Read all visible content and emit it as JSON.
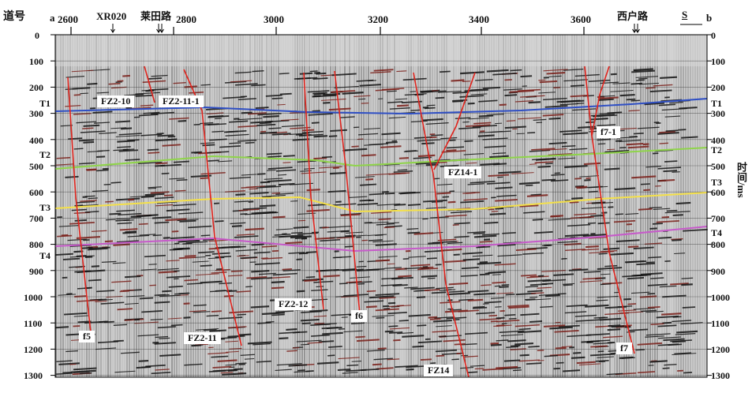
{
  "header": {
    "trace_label": "道号",
    "left_end": "a",
    "right_end": "b",
    "landmarks": [
      "XR020",
      "莱田路",
      "西户路"
    ],
    "direction": "S",
    "trace_ticks": [
      "2600",
      "2800",
      "3000",
      "3200",
      "3400",
      "3600"
    ]
  },
  "axes": {
    "time_ticks": [
      "0",
      "100",
      "200",
      "300",
      "400",
      "500",
      "600",
      "700",
      "800",
      "900",
      "1000",
      "1100",
      "1200",
      "1300"
    ],
    "right_title": "时间/ms"
  },
  "horizons": {
    "left": [
      "T1",
      "T2",
      "T3",
      "T4"
    ],
    "right": [
      "T1",
      "T2",
      "T3",
      "T4"
    ],
    "colors": {
      "T1": "#2f4fc4",
      "T2": "#8fd44a",
      "T3": "#f4e04a",
      "T4": "#c65ac9"
    }
  },
  "faults": {
    "labels": [
      "FZ2-10",
      "FZ2-11-1",
      "FZ14-1",
      "f7-1",
      "FZ2-12",
      "f6",
      "f5",
      "FZ2-11",
      "FZ14",
      "f7"
    ],
    "color": "#e0241d"
  }
}
